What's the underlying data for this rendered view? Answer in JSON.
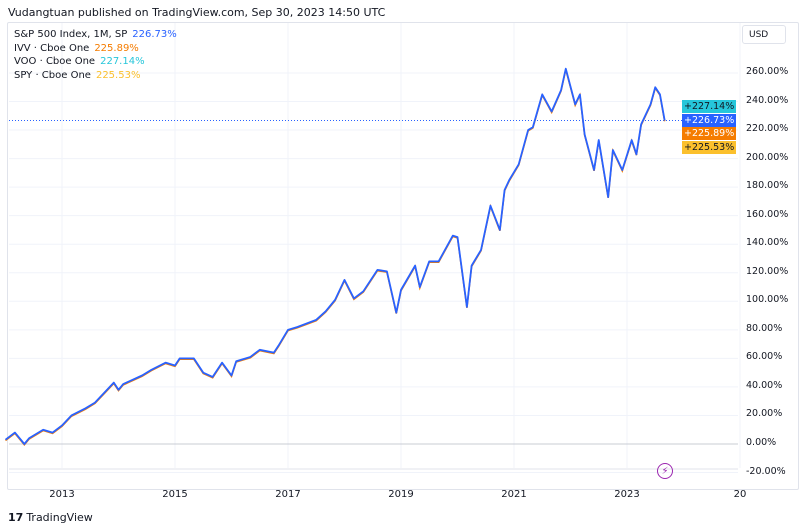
{
  "header": {
    "text": "Vudangtuan published on TradingView.com, Sep 30, 2023 14:50 UTC"
  },
  "legend": [
    {
      "name": "S&P 500 Index, 1M, SP",
      "value": "226.73%",
      "color": "#2962ff"
    },
    {
      "name": "IVV · Cboe One",
      "value": "225.89%",
      "color": "#f57c00"
    },
    {
      "name": "VOO · Cboe One",
      "value": "227.14%",
      "color": "#26c6da"
    },
    {
      "name": "SPY · Cboe One",
      "value": "225.53%",
      "color": "#fbc02d"
    }
  ],
  "currency": "USD",
  "badges": [
    {
      "label": "+227.14%",
      "color": "#26c6da",
      "text_color": "#131722"
    },
    {
      "label": "+226.73%",
      "color": "#2962ff",
      "text_color": "#ffffff"
    },
    {
      "label": "+225.89%",
      "color": "#f57c00",
      "text_color": "#ffffff"
    },
    {
      "label": "+225.53%",
      "color": "#fbc02d",
      "text_color": "#131722"
    }
  ],
  "brand": "TradingView",
  "chart_data": {
    "type": "line",
    "x_unit": "months since 2012-01",
    "ylabel": "% change",
    "ylim": [
      -25,
      275
    ],
    "yticks": [
      -20,
      0,
      20,
      40,
      60,
      80,
      100,
      120,
      140,
      160,
      180,
      200,
      220,
      240,
      260
    ],
    "ytick_labels": [
      "-20.00%",
      "0.00%",
      "20.00%",
      "40.00%",
      "60.00%",
      "80.00%",
      "100.00%",
      "120.00%",
      "140.00%",
      "160.00%",
      "180.00%",
      "200.00%",
      "220.00%",
      "240.00%",
      "260.00%"
    ],
    "xticks": [
      12,
      36,
      60,
      84,
      108,
      132,
      156
    ],
    "xtick_labels": [
      "2013",
      "2015",
      "2017",
      "2019",
      "2021",
      "2023",
      "20"
    ],
    "xlim": [
      -0.5,
      164
    ],
    "current_value": 226.73,
    "series": [
      {
        "name": "S&P 500 Index",
        "color": "#2962ff",
        "x": [
          0,
          2,
          4,
          5,
          8,
          10,
          12,
          14,
          17,
          19,
          21,
          23,
          24,
          25,
          29,
          31,
          34,
          36,
          37,
          40,
          42,
          44,
          46,
          48,
          49,
          52,
          54,
          57,
          58,
          60,
          62,
          66,
          68,
          70,
          72,
          74,
          76,
          79,
          81,
          83,
          84,
          87,
          88,
          90,
          92,
          95,
          96,
          98,
          99,
          101,
          103,
          105,
          106,
          107,
          109,
          111,
          112,
          114,
          116,
          118,
          119,
          121,
          122,
          123,
          125,
          126,
          128,
          129,
          131,
          133,
          134,
          135,
          137,
          138,
          139,
          140
        ],
        "y": [
          3,
          8,
          0,
          4,
          10,
          8,
          13,
          20,
          25,
          29,
          36,
          43,
          38,
          42,
          48,
          52,
          57,
          55,
          60,
          60,
          50,
          47,
          57,
          48,
          58,
          61,
          66,
          64,
          69,
          80,
          82,
          87,
          93,
          101,
          115,
          102,
          107,
          122,
          121,
          92,
          108,
          125,
          110,
          128,
          128,
          146,
          145,
          96,
          125,
          136,
          167,
          150,
          178,
          185,
          196,
          220,
          222,
          245,
          233,
          248,
          263,
          238,
          245,
          217,
          192,
          213,
          173,
          206,
          192,
          213,
          203,
          224,
          238,
          250,
          245,
          226.73
        ]
      }
    ]
  }
}
